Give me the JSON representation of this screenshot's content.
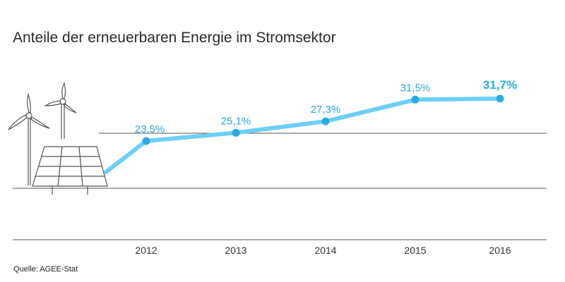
{
  "title": "Anteile der erneuerbaren Energie im Stromsektor",
  "source": "Quelle: AGEE-Stat",
  "colors": {
    "line": "#6ccff6",
    "point": "#29abe2",
    "label": "#29abe2",
    "grid": "#555555",
    "text": "#333333"
  },
  "chart_data": {
    "type": "line",
    "title": "Anteile der erneuerbaren Energie im Stromsektor",
    "xlabel": "",
    "ylabel": "",
    "categories": [
      "2012",
      "2013",
      "2014",
      "2015",
      "2016"
    ],
    "series": [
      {
        "values": [
          23.5,
          25.1,
          27.3,
          31.5,
          31.7
        ]
      }
    ],
    "data_labels": [
      "23,5%",
      "25,1%",
      "27,3%",
      "31,5%",
      "31,7%"
    ],
    "highlight": "2016",
    "ylim": [
      10,
      40
    ],
    "grid": true,
    "legend": "none"
  },
  "decoration": {
    "icons": [
      "wind-turbine-icon",
      "solar-panel-icon"
    ]
  }
}
